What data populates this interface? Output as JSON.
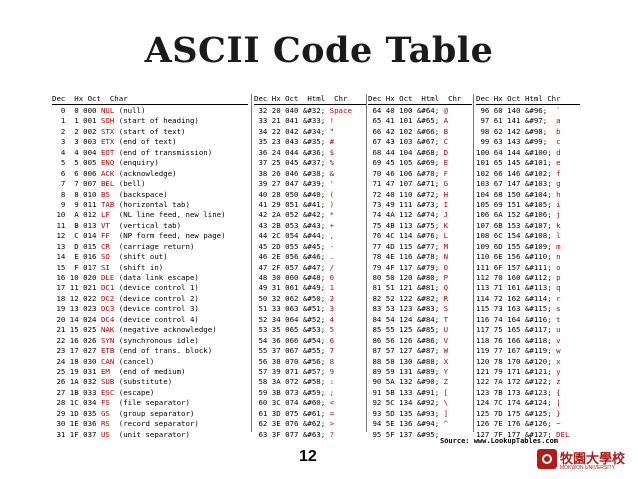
{
  "title": "ASCII Code Table",
  "source": "Source:  www.LookupTables.com",
  "page_number": "12",
  "logo": {
    "chinese": "牧園大學校",
    "english": "MOKWON UNIVERSITY"
  },
  "headers": [
    "Dec  Hx Oct  Char",
    "Dec Hx Oct  Html  Chr",
    "Dec Hx Oct  Html  Chr",
    "Dec Hx Oct Html Chr"
  ],
  "columns": [
    [
      [
        "  0  0 000 ",
        "NUL",
        " (null)"
      ],
      [
        "  1  1 001 ",
        "SOH",
        " (start of heading)"
      ],
      [
        "  2  2 002 ",
        "STX",
        " (start of text)"
      ],
      [
        "  3  3 003 ",
        "ETX",
        " (end of text)"
      ],
      [
        "  4  4 004 ",
        "EOT",
        " (end of transmission)"
      ],
      [
        "  5  5 005 ",
        "ENQ",
        " (enquiry)"
      ],
      [
        "  6  6 006 ",
        "ACK",
        " (acknowledge)"
      ],
      [
        "  7  7 007 ",
        "BEL",
        " (bell)"
      ],
      [
        "  8  8 010 ",
        "BS",
        "  (backspace)"
      ],
      [
        "  9  9 011 ",
        "TAB",
        " (horizontal tab)"
      ],
      [
        " 10  A 012 ",
        "LF",
        "  (NL line feed, new line)"
      ],
      [
        " 11  B 013 ",
        "VT",
        "  (vertical tab)"
      ],
      [
        " 12  C 014 ",
        "FF",
        "  (NP form feed, new page)"
      ],
      [
        " 13  D 015 ",
        "CR",
        "  (carriage return)"
      ],
      [
        " 14  E 016 ",
        "SO",
        "  (shift out)"
      ],
      [
        " 15  F 017 ",
        "SI",
        "  (shift in)"
      ],
      [
        " 16 10 020 ",
        "DLE",
        " (data link escape)"
      ],
      [
        " 17 11 021 ",
        "DC1",
        " (device control 1)"
      ],
      [
        " 18 12 022 ",
        "DC2",
        " (device control 2)"
      ],
      [
        " 19 13 023 ",
        "DC3",
        " (device control 3)"
      ],
      [
        " 20 14 024 ",
        "DC4",
        " (device control 4)"
      ],
      [
        " 21 15 025 ",
        "NAK",
        " (negative acknowledge)"
      ],
      [
        " 22 16 026 ",
        "SYN",
        " (synchronous idle)"
      ],
      [
        " 23 17 027 ",
        "ETB",
        " (end of trans. block)"
      ],
      [
        " 24 18 030 ",
        "CAN",
        " (cancel)"
      ],
      [
        " 25 19 031 ",
        "EM",
        "  (end of medium)"
      ],
      [
        " 26 1A 032 ",
        "SUB",
        " (substitute)"
      ],
      [
        " 27 1B 033 ",
        "ESC",
        " (escape)"
      ],
      [
        " 28 1C 034 ",
        "FS",
        "  (file separator)"
      ],
      [
        " 29 1D 035 ",
        "GS",
        "  (group separator)"
      ],
      [
        " 30 1E 036 ",
        "RS",
        "  (record separator)"
      ],
      [
        " 31 1F 037 ",
        "US",
        "  (unit separator)"
      ]
    ],
    [
      [
        " 32 20 040 &#32; ",
        "Space",
        ""
      ],
      [
        " 33 21 041 &#33; ",
        "!",
        ""
      ],
      [
        " 34 22 042 &#34; ",
        "\"",
        ""
      ],
      [
        " 35 23 043 &#35; ",
        "#",
        ""
      ],
      [
        " 36 24 044 &#36; ",
        "$",
        ""
      ],
      [
        " 37 25 045 &#37; ",
        "%",
        ""
      ],
      [
        " 38 26 046 &#38; ",
        "&",
        ""
      ],
      [
        " 39 27 047 &#39; ",
        "'",
        ""
      ],
      [
        " 40 28 050 &#40; ",
        "(",
        ""
      ],
      [
        " 41 29 051 &#41; ",
        ")",
        ""
      ],
      [
        " 42 2A 052 &#42; ",
        "*",
        ""
      ],
      [
        " 43 2B 053 &#43; ",
        "+",
        ""
      ],
      [
        " 44 2C 054 &#44; ",
        ",",
        ""
      ],
      [
        " 45 2D 055 &#45; ",
        "-",
        ""
      ],
      [
        " 46 2E 056 &#46; ",
        ".",
        ""
      ],
      [
        " 47 2F 057 &#47; ",
        "/",
        ""
      ],
      [
        " 48 30 060 &#48; ",
        "0",
        ""
      ],
      [
        " 49 31 061 &#49; ",
        "1",
        ""
      ],
      [
        " 50 32 062 &#50; ",
        "2",
        ""
      ],
      [
        " 51 33 063 &#51; ",
        "3",
        ""
      ],
      [
        " 52 34 064 &#52; ",
        "4",
        ""
      ],
      [
        " 53 35 065 &#53; ",
        "5",
        ""
      ],
      [
        " 54 36 066 &#54; ",
        "6",
        ""
      ],
      [
        " 55 37 067 &#55; ",
        "7",
        ""
      ],
      [
        " 56 38 070 &#56; ",
        "8",
        ""
      ],
      [
        " 57 39 071 &#57; ",
        "9",
        ""
      ],
      [
        " 58 3A 072 &#58; ",
        ":",
        ""
      ],
      [
        " 59 3B 073 &#59; ",
        ";",
        ""
      ],
      [
        " 60 3C 074 &#60; ",
        "<",
        ""
      ],
      [
        " 61 3D 075 &#61; ",
        "=",
        ""
      ],
      [
        " 62 3E 076 &#62; ",
        ">",
        ""
      ],
      [
        " 63 3F 077 &#63; ",
        "?",
        ""
      ]
    ],
    [
      [
        " 64 40 100 &#64; ",
        "@",
        ""
      ],
      [
        " 65 41 101 &#65; ",
        "A",
        ""
      ],
      [
        " 66 42 102 &#66; ",
        "B",
        ""
      ],
      [
        " 67 43 103 &#67; ",
        "C",
        ""
      ],
      [
        " 68 44 104 &#68; ",
        "D",
        ""
      ],
      [
        " 69 45 105 &#69; ",
        "E",
        ""
      ],
      [
        " 70 46 106 &#70; ",
        "F",
        ""
      ],
      [
        " 71 47 107 &#71; ",
        "G",
        ""
      ],
      [
        " 72 48 110 &#72; ",
        "H",
        ""
      ],
      [
        " 73 49 111 &#73; ",
        "I",
        ""
      ],
      [
        " 74 4A 112 &#74; ",
        "J",
        ""
      ],
      [
        " 75 4B 113 &#75; ",
        "K",
        ""
      ],
      [
        " 76 4C 114 &#76; ",
        "L",
        ""
      ],
      [
        " 77 4D 115 &#77; ",
        "M",
        ""
      ],
      [
        " 78 4E 116 &#78; ",
        "N",
        ""
      ],
      [
        " 79 4F 117 &#79; ",
        "O",
        ""
      ],
      [
        " 80 50 120 &#80; ",
        "P",
        ""
      ],
      [
        " 81 51 121 &#81; ",
        "Q",
        ""
      ],
      [
        " 82 52 122 &#82; ",
        "R",
        ""
      ],
      [
        " 83 53 123 &#83; ",
        "S",
        ""
      ],
      [
        " 84 54 124 &#84; ",
        "T",
        ""
      ],
      [
        " 85 55 125 &#85; ",
        "U",
        ""
      ],
      [
        " 86 56 126 &#86; ",
        "V",
        ""
      ],
      [
        " 87 57 127 &#87; ",
        "W",
        ""
      ],
      [
        " 88 58 130 &#88; ",
        "X",
        ""
      ],
      [
        " 89 59 131 &#89; ",
        "Y",
        ""
      ],
      [
        " 90 5A 132 &#90; ",
        "Z",
        ""
      ],
      [
        " 91 5B 133 &#91; ",
        "[",
        ""
      ],
      [
        " 92 5C 134 &#92; ",
        "\\",
        ""
      ],
      [
        " 93 5D 135 &#93; ",
        "]",
        ""
      ],
      [
        " 94 5E 136 &#94; ",
        "^",
        ""
      ],
      [
        " 95 5F 137 &#95; ",
        "_",
        ""
      ]
    ],
    [
      [
        " 96 60 140 &#96;  ",
        "`",
        ""
      ],
      [
        " 97 61 141 &#97;  ",
        "a",
        ""
      ],
      [
        " 98 62 142 &#98;  ",
        "b",
        ""
      ],
      [
        " 99 63 143 &#99;  ",
        "c",
        ""
      ],
      [
        "100 64 144 &#100; ",
        "d",
        ""
      ],
      [
        "101 65 145 &#101; ",
        "e",
        ""
      ],
      [
        "102 66 146 &#102; ",
        "f",
        ""
      ],
      [
        "103 67 147 &#103; ",
        "g",
        ""
      ],
      [
        "104 68 150 &#104; ",
        "h",
        ""
      ],
      [
        "105 69 151 &#105; ",
        "i",
        ""
      ],
      [
        "106 6A 152 &#106; ",
        "j",
        ""
      ],
      [
        "107 6B 153 &#107; ",
        "k",
        ""
      ],
      [
        "108 6C 154 &#108; ",
        "l",
        ""
      ],
      [
        "109 6D 155 &#109; ",
        "m",
        ""
      ],
      [
        "110 6E 156 &#110; ",
        "n",
        ""
      ],
      [
        "111 6F 157 &#111; ",
        "o",
        ""
      ],
      [
        "112 70 160 &#112; ",
        "p",
        ""
      ],
      [
        "113 71 161 &#113; ",
        "q",
        ""
      ],
      [
        "114 72 162 &#114; ",
        "r",
        ""
      ],
      [
        "115 73 163 &#115; ",
        "s",
        ""
      ],
      [
        "116 74 164 &#116; ",
        "t",
        ""
      ],
      [
        "117 75 165 &#117; ",
        "u",
        ""
      ],
      [
        "118 76 166 &#118; ",
        "v",
        ""
      ],
      [
        "119 77 167 &#119; ",
        "w",
        ""
      ],
      [
        "120 78 170 &#120; ",
        "x",
        ""
      ],
      [
        "121 79 171 &#121; ",
        "y",
        ""
      ],
      [
        "122 7A 172 &#122; ",
        "z",
        ""
      ],
      [
        "123 7B 173 &#123; ",
        "{",
        ""
      ],
      [
        "124 7C 174 &#124; ",
        "|",
        ""
      ],
      [
        "125 7D 175 &#125; ",
        "}",
        ""
      ],
      [
        "126 7E 176 &#126; ",
        "~",
        ""
      ],
      [
        "127 7F 177 &#127; ",
        "DEL",
        ""
      ]
    ]
  ],
  "colors": {
    "char_highlight": "#c00000",
    "text": "#000000",
    "logo": "#b31b1b"
  }
}
